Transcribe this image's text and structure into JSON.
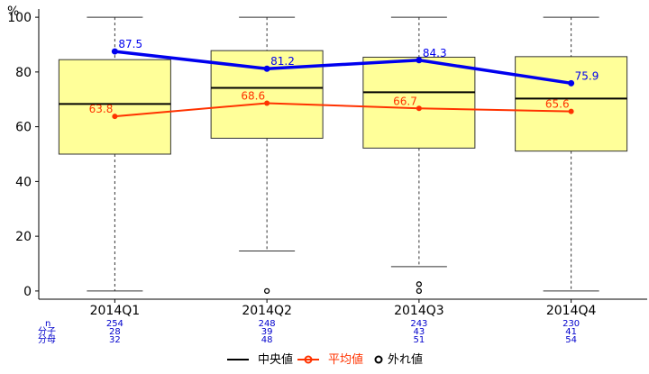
{
  "chart_data": {
    "type": "box",
    "ylabel": "%",
    "ylim": [
      -3,
      103
    ],
    "yticks": [
      0,
      20,
      40,
      60,
      80,
      100
    ],
    "categories": [
      "2014Q1",
      "2014Q2",
      "2014Q3",
      "2014Q4"
    ],
    "boxes": [
      {
        "whisker_low": 0,
        "q1": 50,
        "median": 68.3,
        "q3": 84.5,
        "whisker_high": 100,
        "outliers": []
      },
      {
        "whisker_low": 14.6,
        "q1": 55.8,
        "median": 74.2,
        "q3": 87.8,
        "whisker_high": 100,
        "outliers": [
          0
        ]
      },
      {
        "whisker_low": 8.9,
        "q1": 52.2,
        "median": 72.6,
        "q3": 85.4,
        "whisker_high": 100,
        "outliers": [
          0,
          2.5
        ]
      },
      {
        "whisker_low": 0,
        "q1": 51.1,
        "median": 70.3,
        "q3": 85.6,
        "whisker_high": 100,
        "outliers": []
      }
    ],
    "series": [
      {
        "name": "平均値",
        "values": [
          63.8,
          68.6,
          66.7,
          65.6
        ],
        "labels": [
          "63.8",
          "68.6",
          "66.7",
          "65.6"
        ],
        "color": "#ff3300"
      },
      {
        "values": [
          87.5,
          81.2,
          84.3,
          75.9
        ],
        "labels": [
          "87.5",
          "81.2",
          "84.3",
          "75.9"
        ],
        "color": "#0000ee"
      }
    ],
    "stats": {
      "row_labels": [
        "n",
        "分子",
        "分母"
      ],
      "n": [
        "254",
        "248",
        "243",
        "230"
      ],
      "numerator": [
        "28",
        "39",
        "43",
        "41"
      ],
      "denominator": [
        "32",
        "48",
        "51",
        "54"
      ]
    },
    "legend": {
      "placement": "bottom",
      "items": [
        {
          "label": "中央値",
          "color": "#000000"
        },
        {
          "label": "平均値",
          "color": "#ff3300"
        },
        {
          "label": "外れ値",
          "color": "#000000"
        }
      ]
    },
    "colors": {
      "box_fill": "#ffff99",
      "box_stroke": "#333333",
      "axis": "#000000"
    }
  }
}
